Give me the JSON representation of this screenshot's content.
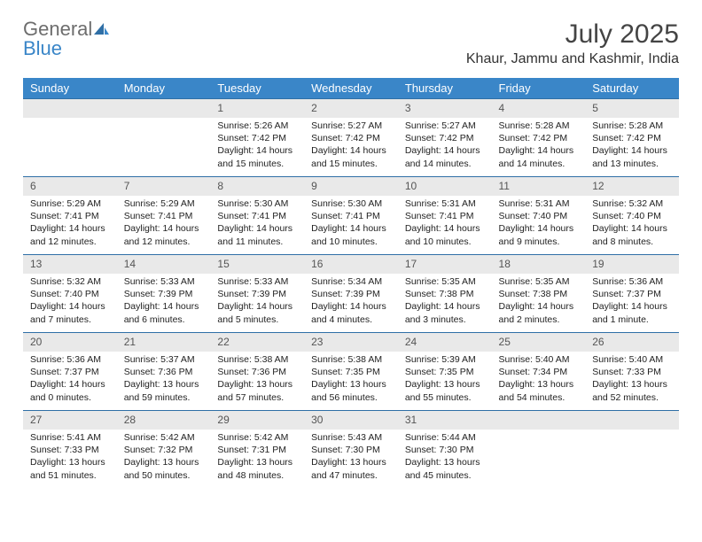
{
  "logo": {
    "part1": "General",
    "part2": "Blue"
  },
  "title": "July 2025",
  "location": "Khaur, Jammu and Kashmir, India",
  "colors": {
    "header_bg": "#3a86c8",
    "header_text": "#ffffff",
    "daynum_bg": "#e9e9e9",
    "border_top": "#2f6fa6",
    "logo_gray": "#6d6d6d",
    "logo_blue": "#3a86c8"
  },
  "dayNames": [
    "Sunday",
    "Monday",
    "Tuesday",
    "Wednesday",
    "Thursday",
    "Friday",
    "Saturday"
  ],
  "weeks": [
    {
      "nums": [
        "",
        "",
        "1",
        "2",
        "3",
        "4",
        "5"
      ],
      "cells": [
        null,
        null,
        {
          "sr": "Sunrise: 5:26 AM",
          "ss": "Sunset: 7:42 PM",
          "d1": "Daylight: 14 hours",
          "d2": "and 15 minutes."
        },
        {
          "sr": "Sunrise: 5:27 AM",
          "ss": "Sunset: 7:42 PM",
          "d1": "Daylight: 14 hours",
          "d2": "and 15 minutes."
        },
        {
          "sr": "Sunrise: 5:27 AM",
          "ss": "Sunset: 7:42 PM",
          "d1": "Daylight: 14 hours",
          "d2": "and 14 minutes."
        },
        {
          "sr": "Sunrise: 5:28 AM",
          "ss": "Sunset: 7:42 PM",
          "d1": "Daylight: 14 hours",
          "d2": "and 14 minutes."
        },
        {
          "sr": "Sunrise: 5:28 AM",
          "ss": "Sunset: 7:42 PM",
          "d1": "Daylight: 14 hours",
          "d2": "and 13 minutes."
        }
      ]
    },
    {
      "nums": [
        "6",
        "7",
        "8",
        "9",
        "10",
        "11",
        "12"
      ],
      "cells": [
        {
          "sr": "Sunrise: 5:29 AM",
          "ss": "Sunset: 7:41 PM",
          "d1": "Daylight: 14 hours",
          "d2": "and 12 minutes."
        },
        {
          "sr": "Sunrise: 5:29 AM",
          "ss": "Sunset: 7:41 PM",
          "d1": "Daylight: 14 hours",
          "d2": "and 12 minutes."
        },
        {
          "sr": "Sunrise: 5:30 AM",
          "ss": "Sunset: 7:41 PM",
          "d1": "Daylight: 14 hours",
          "d2": "and 11 minutes."
        },
        {
          "sr": "Sunrise: 5:30 AM",
          "ss": "Sunset: 7:41 PM",
          "d1": "Daylight: 14 hours",
          "d2": "and 10 minutes."
        },
        {
          "sr": "Sunrise: 5:31 AM",
          "ss": "Sunset: 7:41 PM",
          "d1": "Daylight: 14 hours",
          "d2": "and 10 minutes."
        },
        {
          "sr": "Sunrise: 5:31 AM",
          "ss": "Sunset: 7:40 PM",
          "d1": "Daylight: 14 hours",
          "d2": "and 9 minutes."
        },
        {
          "sr": "Sunrise: 5:32 AM",
          "ss": "Sunset: 7:40 PM",
          "d1": "Daylight: 14 hours",
          "d2": "and 8 minutes."
        }
      ]
    },
    {
      "nums": [
        "13",
        "14",
        "15",
        "16",
        "17",
        "18",
        "19"
      ],
      "cells": [
        {
          "sr": "Sunrise: 5:32 AM",
          "ss": "Sunset: 7:40 PM",
          "d1": "Daylight: 14 hours",
          "d2": "and 7 minutes."
        },
        {
          "sr": "Sunrise: 5:33 AM",
          "ss": "Sunset: 7:39 PM",
          "d1": "Daylight: 14 hours",
          "d2": "and 6 minutes."
        },
        {
          "sr": "Sunrise: 5:33 AM",
          "ss": "Sunset: 7:39 PM",
          "d1": "Daylight: 14 hours",
          "d2": "and 5 minutes."
        },
        {
          "sr": "Sunrise: 5:34 AM",
          "ss": "Sunset: 7:39 PM",
          "d1": "Daylight: 14 hours",
          "d2": "and 4 minutes."
        },
        {
          "sr": "Sunrise: 5:35 AM",
          "ss": "Sunset: 7:38 PM",
          "d1": "Daylight: 14 hours",
          "d2": "and 3 minutes."
        },
        {
          "sr": "Sunrise: 5:35 AM",
          "ss": "Sunset: 7:38 PM",
          "d1": "Daylight: 14 hours",
          "d2": "and 2 minutes."
        },
        {
          "sr": "Sunrise: 5:36 AM",
          "ss": "Sunset: 7:37 PM",
          "d1": "Daylight: 14 hours",
          "d2": "and 1 minute."
        }
      ]
    },
    {
      "nums": [
        "20",
        "21",
        "22",
        "23",
        "24",
        "25",
        "26"
      ],
      "cells": [
        {
          "sr": "Sunrise: 5:36 AM",
          "ss": "Sunset: 7:37 PM",
          "d1": "Daylight: 14 hours",
          "d2": "and 0 minutes."
        },
        {
          "sr": "Sunrise: 5:37 AM",
          "ss": "Sunset: 7:36 PM",
          "d1": "Daylight: 13 hours",
          "d2": "and 59 minutes."
        },
        {
          "sr": "Sunrise: 5:38 AM",
          "ss": "Sunset: 7:36 PM",
          "d1": "Daylight: 13 hours",
          "d2": "and 57 minutes."
        },
        {
          "sr": "Sunrise: 5:38 AM",
          "ss": "Sunset: 7:35 PM",
          "d1": "Daylight: 13 hours",
          "d2": "and 56 minutes."
        },
        {
          "sr": "Sunrise: 5:39 AM",
          "ss": "Sunset: 7:35 PM",
          "d1": "Daylight: 13 hours",
          "d2": "and 55 minutes."
        },
        {
          "sr": "Sunrise: 5:40 AM",
          "ss": "Sunset: 7:34 PM",
          "d1": "Daylight: 13 hours",
          "d2": "and 54 minutes."
        },
        {
          "sr": "Sunrise: 5:40 AM",
          "ss": "Sunset: 7:33 PM",
          "d1": "Daylight: 13 hours",
          "d2": "and 52 minutes."
        }
      ]
    },
    {
      "nums": [
        "27",
        "28",
        "29",
        "30",
        "31",
        "",
        ""
      ],
      "cells": [
        {
          "sr": "Sunrise: 5:41 AM",
          "ss": "Sunset: 7:33 PM",
          "d1": "Daylight: 13 hours",
          "d2": "and 51 minutes."
        },
        {
          "sr": "Sunrise: 5:42 AM",
          "ss": "Sunset: 7:32 PM",
          "d1": "Daylight: 13 hours",
          "d2": "and 50 minutes."
        },
        {
          "sr": "Sunrise: 5:42 AM",
          "ss": "Sunset: 7:31 PM",
          "d1": "Daylight: 13 hours",
          "d2": "and 48 minutes."
        },
        {
          "sr": "Sunrise: 5:43 AM",
          "ss": "Sunset: 7:30 PM",
          "d1": "Daylight: 13 hours",
          "d2": "and 47 minutes."
        },
        {
          "sr": "Sunrise: 5:44 AM",
          "ss": "Sunset: 7:30 PM",
          "d1": "Daylight: 13 hours",
          "d2": "and 45 minutes."
        },
        null,
        null
      ]
    }
  ]
}
